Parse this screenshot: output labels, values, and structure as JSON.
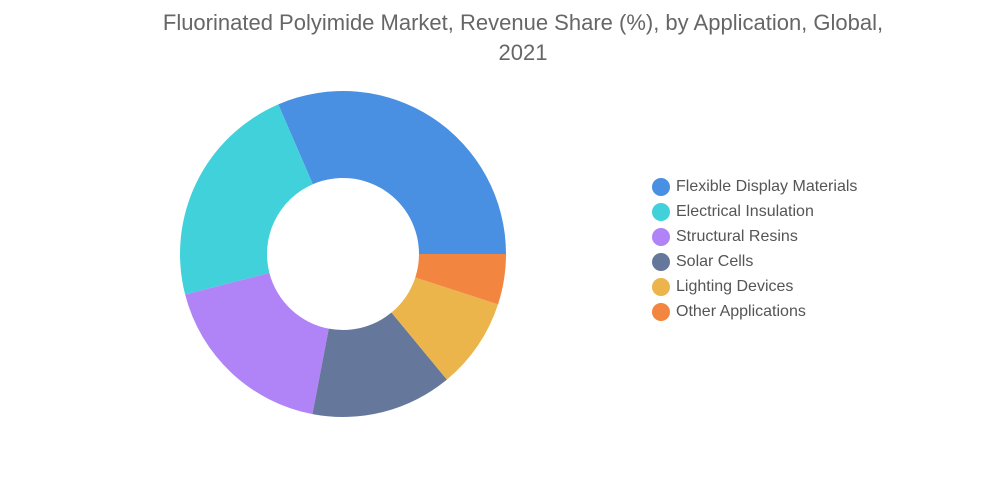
{
  "chart_data": {
    "type": "pie",
    "title_line1": "Fluorinated Polyimide Market, Revenue Share (%), by Application, Global,",
    "title_line2": "2021",
    "labels": [
      "Flexible Display Materials",
      "Electrical Insulation",
      "Structural Resins",
      "Solar Cells",
      "Lighting Devices",
      "Other Applications"
    ],
    "values": [
      31.5,
      22.5,
      18,
      14,
      9,
      5
    ],
    "colors": [
      "#4a90e2",
      "#41d1da",
      "#b084f7",
      "#66779c",
      "#ebb54b",
      "#f28640"
    ],
    "donut": true,
    "legend_position": "right"
  }
}
